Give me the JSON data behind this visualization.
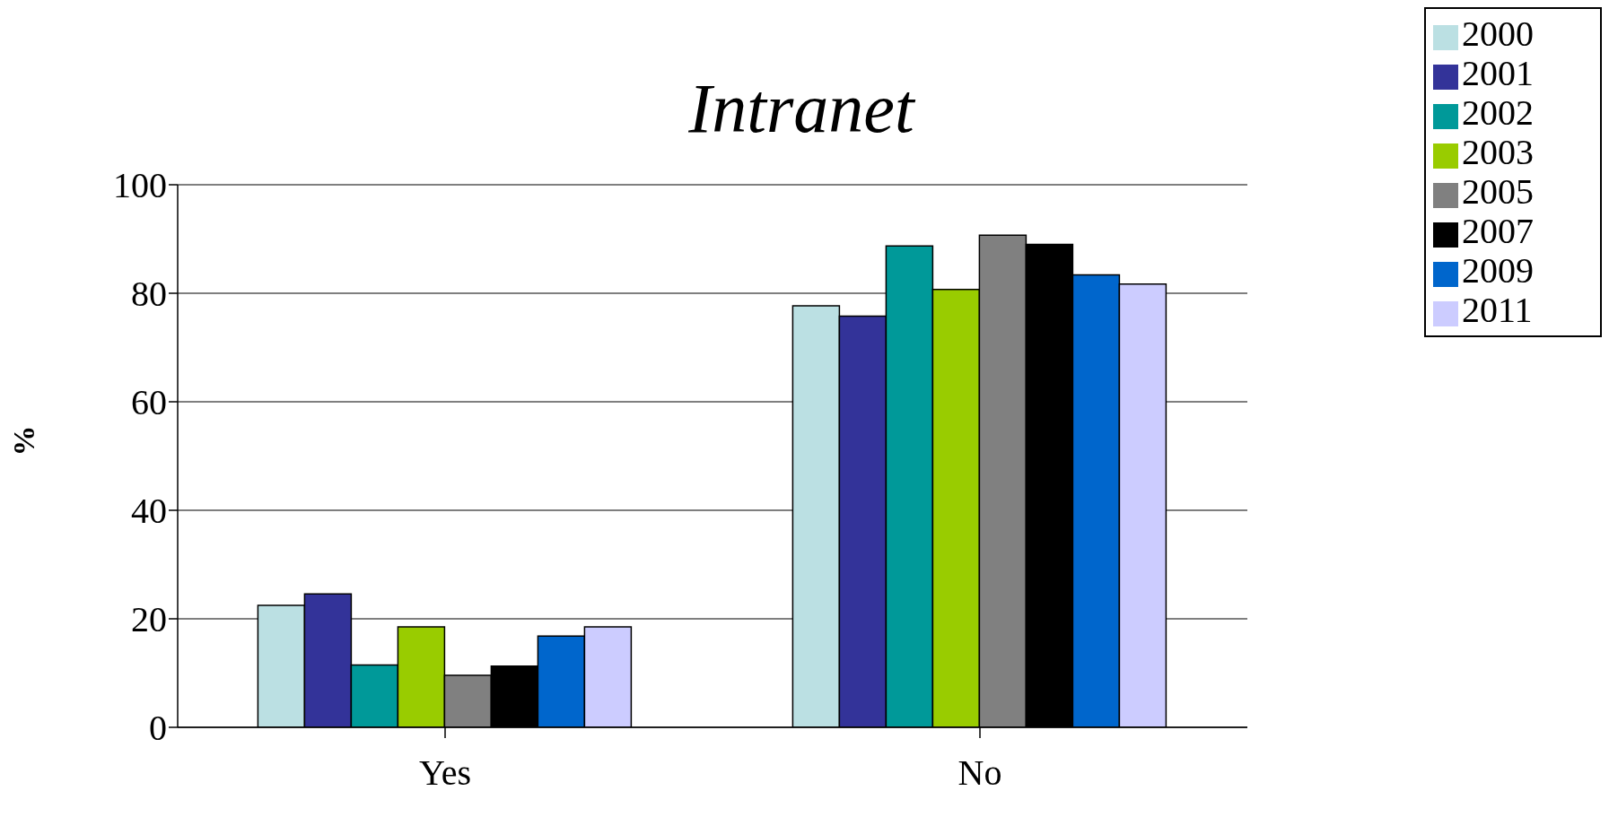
{
  "chart_data": {
    "type": "bar",
    "title": "Intranet",
    "ylabel": "%",
    "categories": [
      "Yes",
      "No"
    ],
    "series": [
      {
        "name": "2000",
        "color": "#bbe0e3",
        "values": [
          22.5,
          77.7
        ]
      },
      {
        "name": "2001",
        "color": "#333399",
        "values": [
          24.6,
          75.8
        ]
      },
      {
        "name": "2002",
        "color": "#009999",
        "values": [
          11.5,
          88.7
        ]
      },
      {
        "name": "2003",
        "color": "#99cc00",
        "values": [
          18.5,
          80.7
        ]
      },
      {
        "name": "2005",
        "color": "#808080",
        "values": [
          9.6,
          90.7
        ]
      },
      {
        "name": "2007",
        "color": "#000000",
        "values": [
          11.3,
          89
        ]
      },
      {
        "name": "2009",
        "color": "#0066cc",
        "values": [
          16.8,
          83.4
        ]
      },
      {
        "name": "2011",
        "color": "#ccccff",
        "values": [
          18.5,
          81.7
        ]
      }
    ],
    "ylim": [
      0,
      100
    ],
    "yticks": [
      0,
      20,
      40,
      60,
      80,
      100
    ],
    "grid": "y",
    "legend": "top right"
  }
}
